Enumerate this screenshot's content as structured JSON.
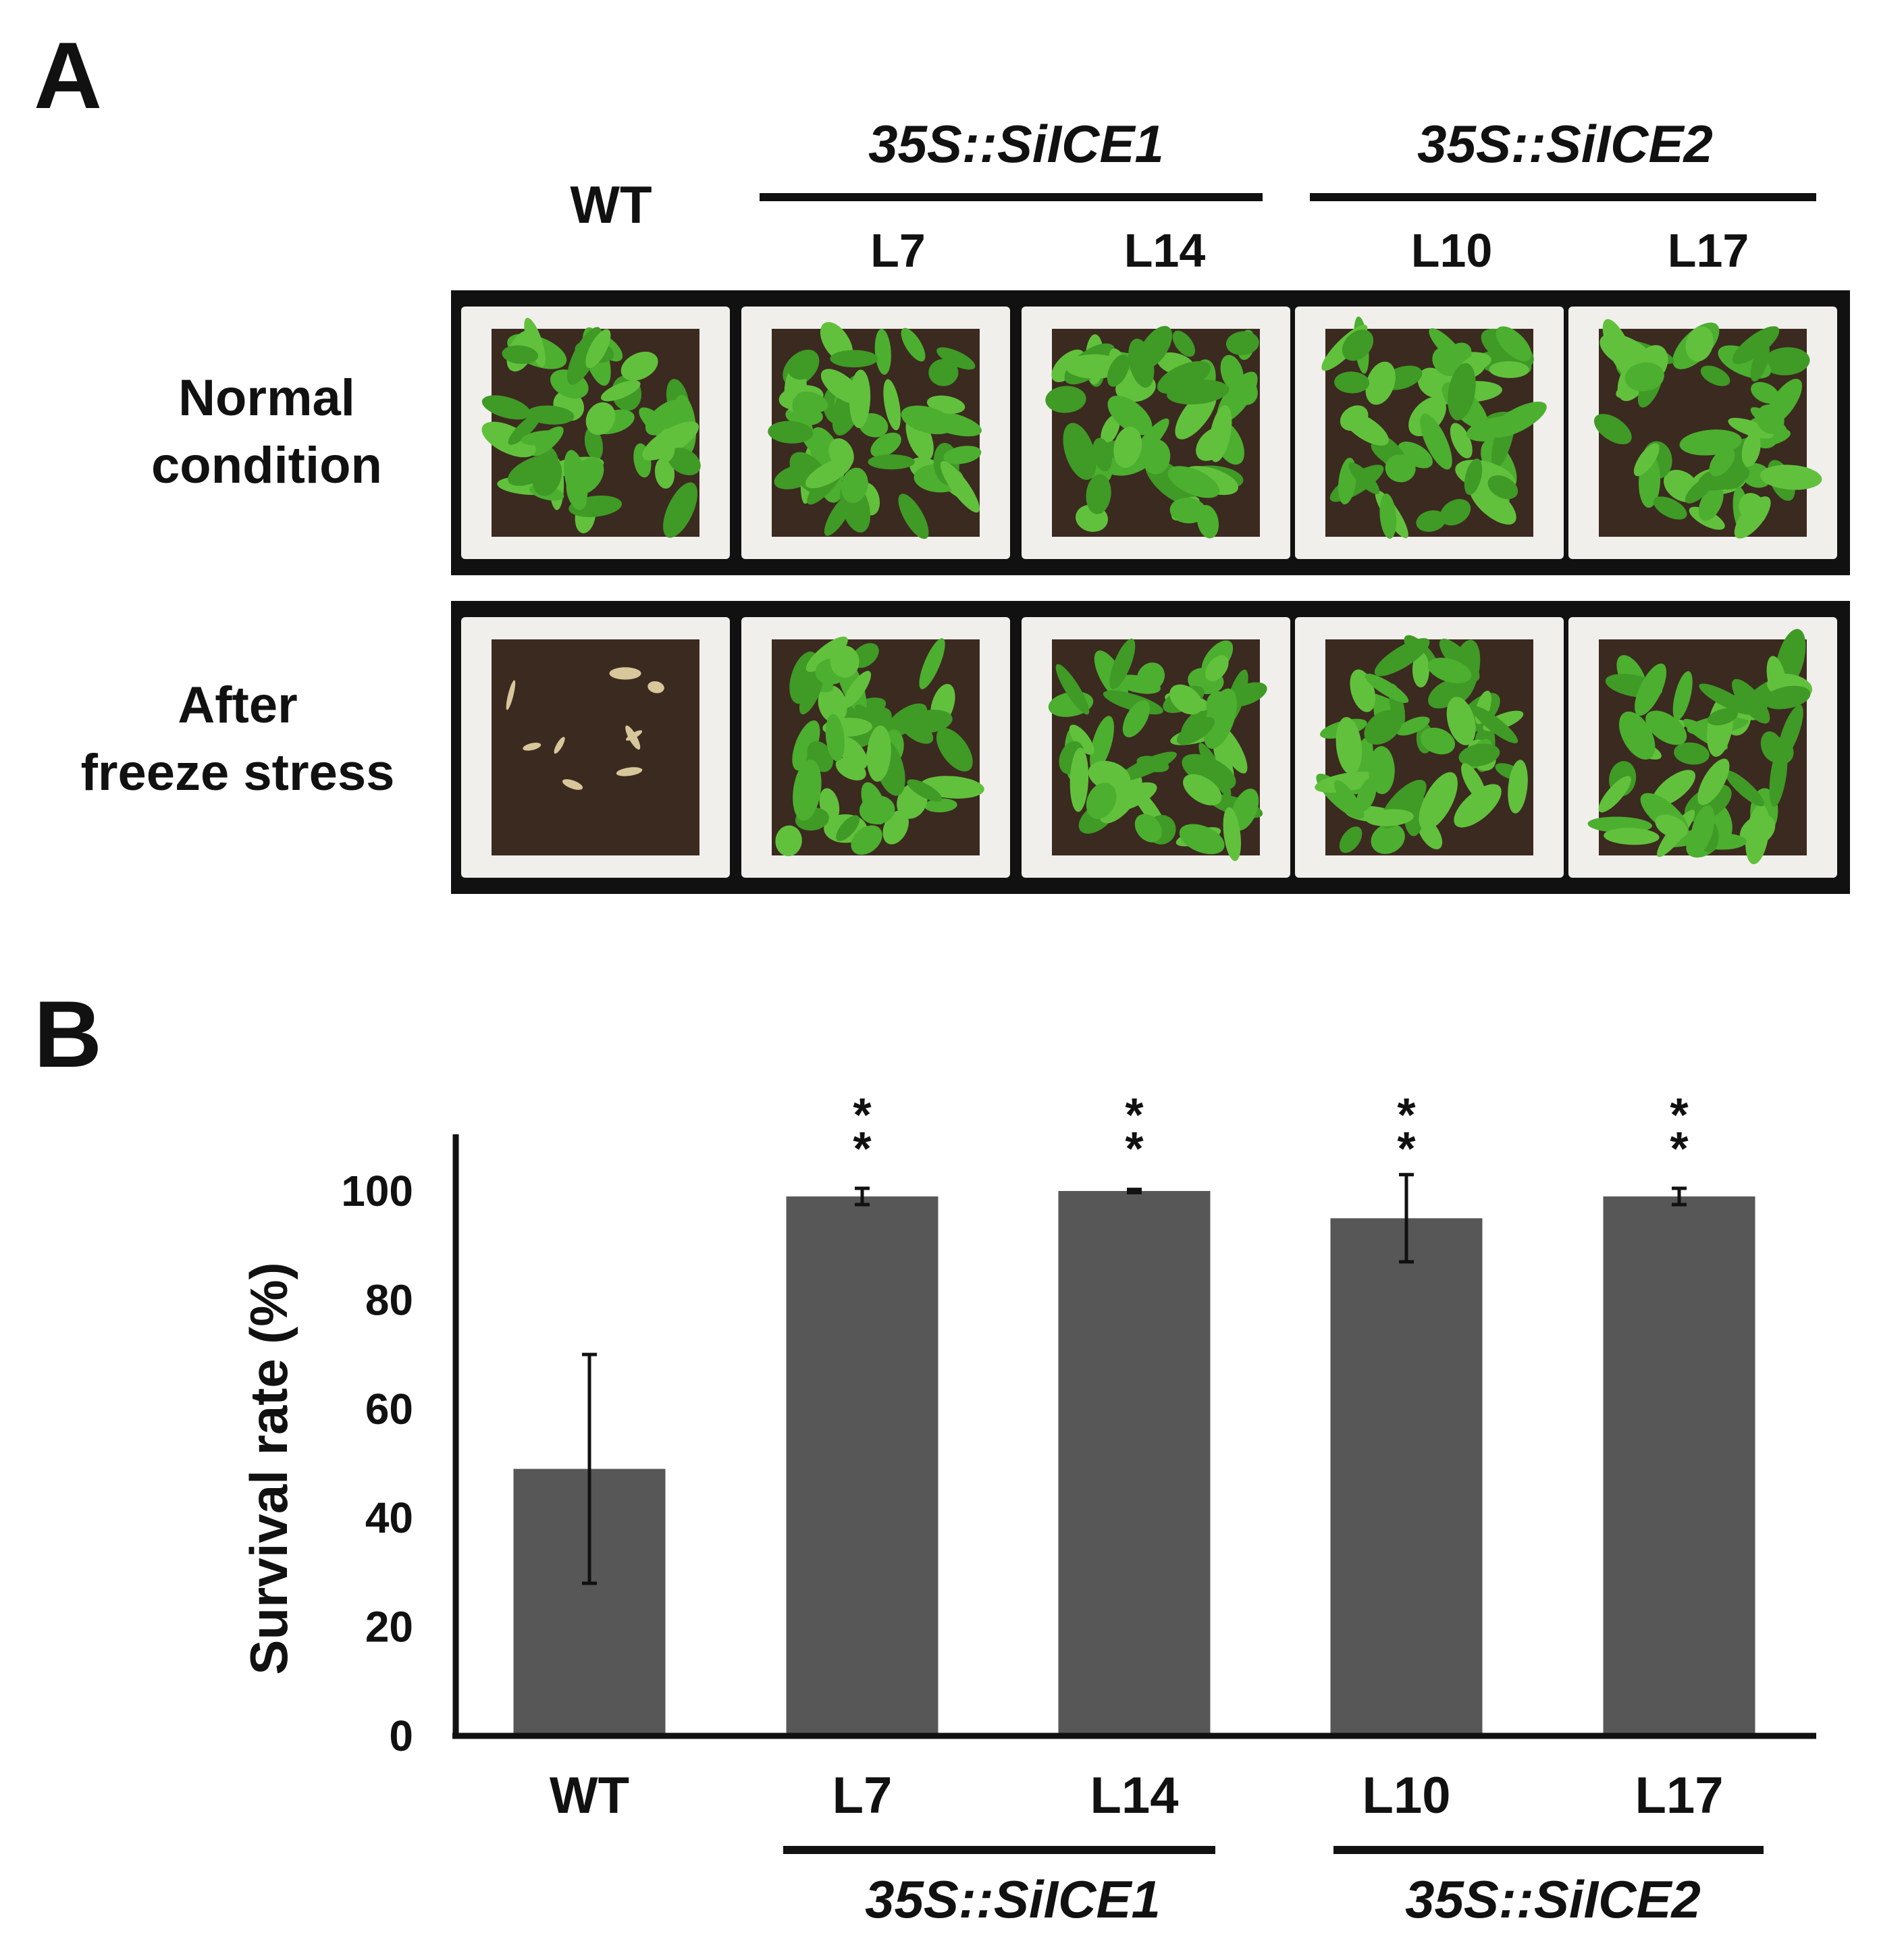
{
  "panel_a": {
    "letter": "A",
    "groups": [
      {
        "label": "35S::SiICE1",
        "lines": [
          "L7",
          "L14"
        ]
      },
      {
        "label": "35S::SiICE2",
        "lines": [
          "L10",
          "L17"
        ]
      }
    ],
    "wt_label": "WT",
    "line_labels": [
      "L7",
      "L14",
      "L10",
      "L17"
    ],
    "rows": [
      {
        "line1": "Normal",
        "line2": "condition"
      },
      {
        "line1": "After",
        "line2": "freeze stress"
      }
    ],
    "photo_description_colors": {
      "pot": "#f1efec",
      "soil": "#3b2a1f",
      "healthy_plant": "#4caf2f",
      "dead_plant": "#d8c79a"
    }
  },
  "panel_b": {
    "letter": "B",
    "group_labels": [
      "35S::SiICE1",
      "35S::SiICE2"
    ]
  },
  "chart_data": {
    "type": "bar",
    "categories": [
      "WT",
      "L7",
      "L14",
      "L10",
      "L17"
    ],
    "values": [
      49,
      99,
      100,
      95,
      99
    ],
    "errors": [
      21,
      1.5,
      0.3,
      8,
      1.5
    ],
    "significance": [
      "",
      "**",
      "**",
      "**",
      "**"
    ],
    "title": "",
    "xlabel": "",
    "ylabel": "Survival rate (%)",
    "ylim": [
      0,
      110
    ],
    "yticks": [
      0,
      20,
      40,
      60,
      80,
      100
    ],
    "bar_color": "#575757",
    "grid": false,
    "legend": "none"
  }
}
